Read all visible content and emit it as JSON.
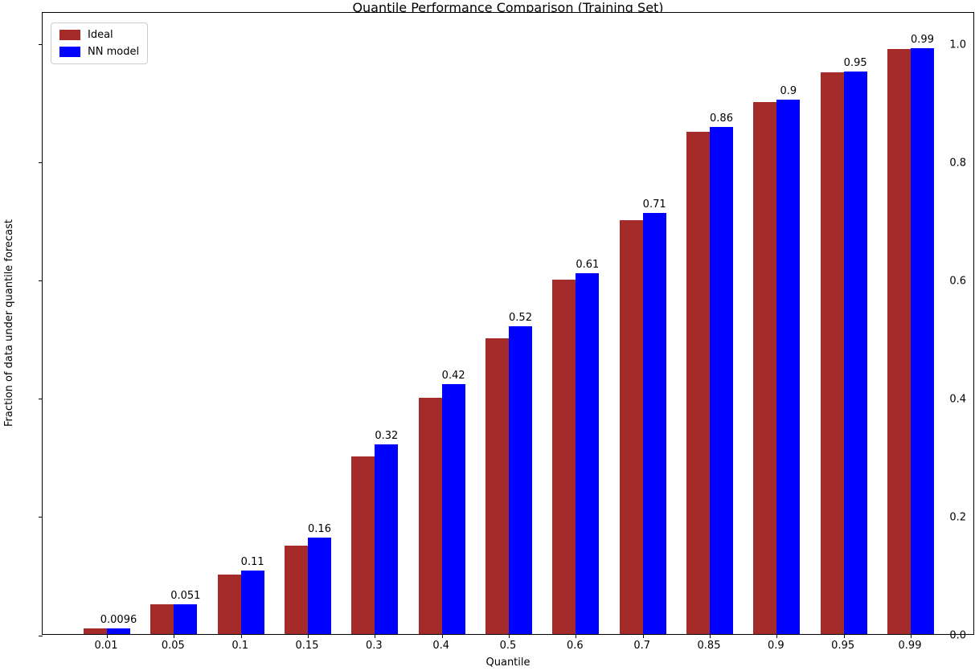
{
  "chart_data": {
    "type": "bar",
    "title": "Quantile Performance Comparison (Training Set)",
    "xlabel": "Quantile",
    "ylabel": "Fraction of data under quantile forecast",
    "categories": [
      "0.01",
      "0.05",
      "0.1",
      "0.15",
      "0.3",
      "0.4",
      "0.5",
      "0.6",
      "0.7",
      "0.85",
      "0.9",
      "0.95",
      "0.99"
    ],
    "series": [
      {
        "name": "Ideal",
        "color": "#a52a2a",
        "values": [
          0.01,
          0.05,
          0.1,
          0.15,
          0.3,
          0.4,
          0.5,
          0.6,
          0.7,
          0.85,
          0.9,
          0.95,
          0.99
        ]
      },
      {
        "name": "NN model",
        "color": "#0000ff",
        "values": [
          0.0096,
          0.051,
          0.107,
          0.163,
          0.321,
          0.423,
          0.521,
          0.611,
          0.712,
          0.858,
          0.905,
          0.952,
          0.992
        ]
      }
    ],
    "bar_labels": [
      "0.0096",
      "0.051",
      "0.11",
      "0.16",
      "0.32",
      "0.42",
      "0.52",
      "0.61",
      "0.71",
      "0.86",
      "0.9",
      "0.95",
      "0.99"
    ],
    "y_ticks": [
      {
        "value": 0.0,
        "label": "0.0"
      },
      {
        "value": 0.2,
        "label": "0.2"
      },
      {
        "value": 0.4,
        "label": "0.4"
      },
      {
        "value": 0.6,
        "label": "0.6"
      },
      {
        "value": 0.8,
        "label": "0.8"
      },
      {
        "value": 1.0,
        "label": "1.0"
      }
    ],
    "ylim": [
      0,
      1.054
    ],
    "grid": false,
    "legend_position": "upper-left",
    "axis_color": "#000000",
    "text_color": "#000000"
  }
}
